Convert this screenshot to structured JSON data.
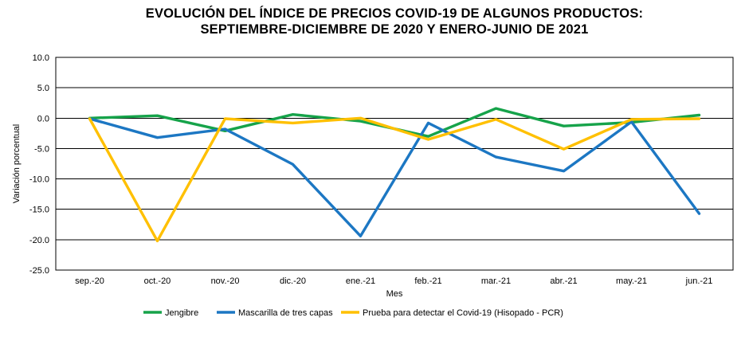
{
  "chart_data": {
    "type": "line",
    "title": "EVOLUCIÓN DEL ÍNDICE DE PRECIOS COVID-19 DE ALGUNOS PRODUCTOS:\nSEPTIEMBRE-DICIEMBRE DE 2020 Y ENERO-JUNIO DE 2021",
    "xlabel": "Mes",
    "ylabel": "Variación porcentual",
    "categories": [
      "sep.-20",
      "oct.-20",
      "nov.-20",
      "dic.-20",
      "ene.-21",
      "feb.-21",
      "mar.-21",
      "abr.-21",
      "may.-21",
      "jun.-21"
    ],
    "series": [
      {
        "name": "Jengibre",
        "color": "#16A34A",
        "values": [
          0.0,
          0.4,
          -2.1,
          0.6,
          -0.5,
          -3.0,
          1.6,
          -1.3,
          -0.7,
          0.5
        ]
      },
      {
        "name": "Mascarilla de tres capas",
        "color": "#1C77C3",
        "values": [
          -0.1,
          -3.2,
          -1.8,
          -7.6,
          -19.4,
          -0.8,
          -6.4,
          -8.7,
          -0.6,
          -15.7
        ]
      },
      {
        "name": "Prueba para detectar el Covid-19 (Hisopado - PCR)",
        "color": "#FFC000",
        "values": [
          -0.1,
          -20.2,
          -0.1,
          -0.8,
          0.0,
          -3.5,
          -0.2,
          -5.1,
          -0.2,
          -0.1
        ]
      }
    ],
    "ylim": [
      -25.0,
      10.0
    ],
    "ytick_step": 5.0,
    "yticks_labels": [
      "10.0",
      "5.0",
      "0.0",
      "-5.0",
      "-10.0",
      "-15.0",
      "-20.0",
      "-25.0"
    ],
    "grid": "horizontal",
    "grid_color": "#000000",
    "axis_color": "#000000",
    "legend_position": "bottom"
  }
}
